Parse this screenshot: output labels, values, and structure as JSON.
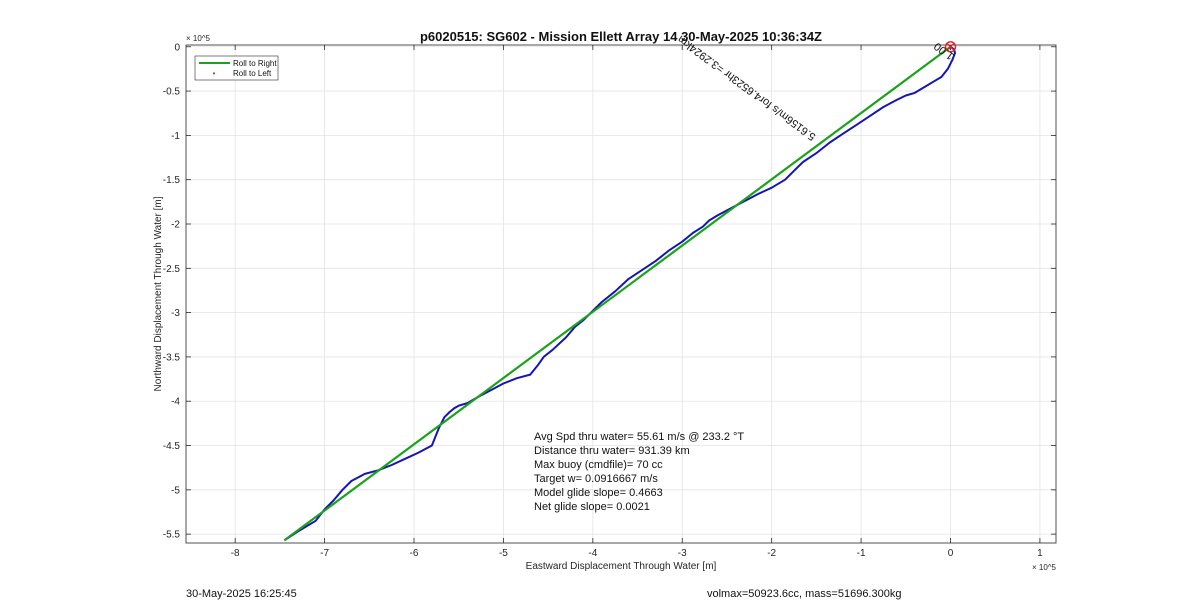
{
  "chart_data": {
    "type": "line",
    "title": "p6020515: SG602 - Mission Ellett Array 14 30-May-2025 10:36:34Z",
    "xlabel": "Eastward Displacement Through Water [m]",
    "ylabel": "Northward Displacement Through Water [m]",
    "x_exponent": "× 10^5",
    "y_exponent": "× 10^5",
    "xlim": [
      -8.55,
      1.18
    ],
    "ylim": [
      -5.6,
      0.02
    ],
    "xticks": [
      -8,
      -7,
      -6,
      -5,
      -4,
      -3,
      -2,
      -1,
      0,
      1
    ],
    "yticks": [
      0,
      -0.5,
      -1,
      -1.5,
      -2,
      -2.5,
      -3,
      -3.5,
      -4,
      -4.5,
      -5,
      -5.5
    ],
    "grid": true,
    "legend_placement": "top-left",
    "legend": [
      "Roll to Right",
      "Roll to Left"
    ],
    "series": [
      {
        "name": "Roll to Right",
        "color": "#1aa31a",
        "x": [
          -7.45,
          0.0
        ],
        "y": [
          -5.57,
          0.0
        ]
      },
      {
        "name": "Roll to Left",
        "color": "#d62728",
        "x": [
          0.0
        ],
        "y": [
          0.0
        ]
      },
      {
        "color": "#1515b4",
        "x": [
          -7.45,
          -7.3,
          -7.1,
          -7.0,
          -6.9,
          -6.8,
          -6.7,
          -6.55,
          -6.4,
          -6.25,
          -6.1,
          -5.95,
          -5.8,
          -5.72,
          -5.66,
          -5.6,
          -5.55,
          -5.5,
          -5.4,
          -5.3,
          -5.15,
          -5.0,
          -4.85,
          -4.7,
          -4.62,
          -4.55,
          -4.45,
          -4.3,
          -4.2,
          -4.1,
          -4.0,
          -3.9,
          -3.75,
          -3.6,
          -3.45,
          -3.3,
          -3.15,
          -3.0,
          -2.88,
          -2.77,
          -2.7,
          -2.6,
          -2.45,
          -2.3,
          -2.15,
          -2.0,
          -1.85,
          -1.75,
          -1.65,
          -1.5,
          -1.35,
          -1.2,
          -1.05,
          -0.9,
          -0.75,
          -0.6,
          -0.5,
          -0.4,
          -0.3,
          -0.2,
          -0.1,
          -0.03,
          0.02,
          0.05,
          0.04,
          0.0,
          -0.02,
          0.0
        ],
        "y": [
          -5.57,
          -5.47,
          -5.35,
          -5.22,
          -5.12,
          -5.0,
          -4.9,
          -4.82,
          -4.78,
          -4.72,
          -4.65,
          -4.58,
          -4.5,
          -4.3,
          -4.18,
          -4.12,
          -4.08,
          -4.05,
          -4.02,
          -3.96,
          -3.88,
          -3.8,
          -3.74,
          -3.7,
          -3.6,
          -3.5,
          -3.42,
          -3.28,
          -3.16,
          -3.08,
          -2.98,
          -2.88,
          -2.76,
          -2.62,
          -2.52,
          -2.42,
          -2.3,
          -2.2,
          -2.1,
          -2.03,
          -1.96,
          -1.9,
          -1.82,
          -1.74,
          -1.66,
          -1.59,
          -1.5,
          -1.4,
          -1.3,
          -1.2,
          -1.08,
          -0.98,
          -0.88,
          -0.78,
          -0.68,
          -0.6,
          -0.55,
          -0.52,
          -0.46,
          -0.4,
          -0.34,
          -0.25,
          -0.15,
          -0.07,
          -0.03,
          0.0,
          -0.02,
          0.0
        ]
      }
    ],
    "vector_label": "5.6156m/s for4.6523hr =3.2924km",
    "vector_label_anchor": [
      -1.5,
      -1.0
    ],
    "vector_label_tail": "1.00",
    "vector_label_angle_deg": 36.5,
    "annotations": [
      "Avg Spd thru water= 55.61 m/s @ 233.2 °T",
      "Distance thru water= 931.39 km",
      "Max buoy (cmdfile)= 70 cc",
      "Target w= 0.0916667 m/s",
      "Model glide slope= 0.4663",
      "Net glide slope= 0.0021"
    ]
  },
  "footer": {
    "timestamp": "30-May-2025 16:25:45",
    "info": "volmax=50923.6cc, mass=51696.300kg"
  }
}
